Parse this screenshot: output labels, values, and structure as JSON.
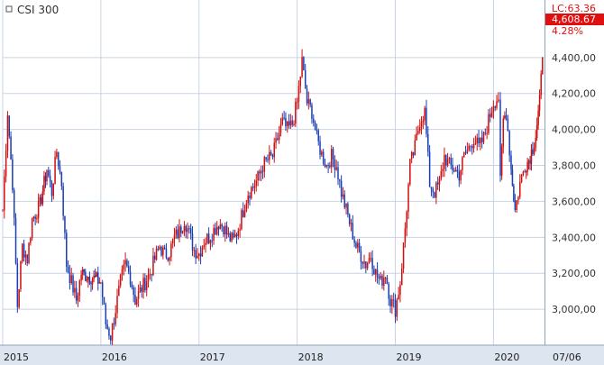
{
  "chart_data": {
    "type": "candlestick",
    "title": "CSI 300",
    "xlabel": "",
    "ylabel": "",
    "x_range": [
      "2015-01",
      "2020-07"
    ],
    "ylim": [
      2800,
      4720
    ],
    "grid": true,
    "y_ticks": [
      {
        "value": 3000,
        "label": "3,000,00"
      },
      {
        "value": 3200,
        "label": "3,200,00"
      },
      {
        "value": 3400,
        "label": "3,400,00"
      },
      {
        "value": 3600,
        "label": "3,600,00"
      },
      {
        "value": 3800,
        "label": "3,800,00"
      },
      {
        "value": 4000,
        "label": "4,000,00"
      },
      {
        "value": 4200,
        "label": "4,200,00"
      },
      {
        "value": 4400,
        "label": "4,400,00"
      }
    ],
    "x_ticks": [
      {
        "year": 2015,
        "label": "2015"
      },
      {
        "year": 2016,
        "label": "2016"
      },
      {
        "year": 2017,
        "label": "2017"
      },
      {
        "year": 2018,
        "label": "2018"
      },
      {
        "year": 2019,
        "label": "2019"
      },
      {
        "year": 2020,
        "label": "2020"
      }
    ],
    "date_label": "07/06",
    "last_price": {
      "label": "LC:63.36",
      "value": 4608.67,
      "value_label": "4,608.67",
      "change_label": "4.28%"
    },
    "colors": {
      "up": "#d01010",
      "down": "#1a3fb5",
      "grid": "#c8d4e3",
      "axis_bg": "#dde6f0",
      "price_bg": "#e01010"
    },
    "series": [
      {
        "x": 2015.0,
        "y": 3550
      },
      {
        "x": 2015.05,
        "y": 4100
      },
      {
        "x": 2015.1,
        "y": 3700
      },
      {
        "x": 2015.15,
        "y": 3020
      },
      {
        "x": 2015.2,
        "y": 3350
      },
      {
        "x": 2015.25,
        "y": 3280
      },
      {
        "x": 2015.3,
        "y": 3500
      },
      {
        "x": 2015.38,
        "y": 3580
      },
      {
        "x": 2015.45,
        "y": 3780
      },
      {
        "x": 2015.5,
        "y": 3650
      },
      {
        "x": 2015.55,
        "y": 3880
      },
      {
        "x": 2015.6,
        "y": 3700
      },
      {
        "x": 2015.65,
        "y": 3250
      },
      {
        "x": 2015.7,
        "y": 3150
      },
      {
        "x": 2015.75,
        "y": 3050
      },
      {
        "x": 2015.8,
        "y": 3200
      },
      {
        "x": 2015.9,
        "y": 3180
      },
      {
        "x": 2016.0,
        "y": 3150
      },
      {
        "x": 2016.05,
        "y": 2920
      },
      {
        "x": 2016.1,
        "y": 2850
      },
      {
        "x": 2016.15,
        "y": 3000
      },
      {
        "x": 2016.2,
        "y": 3150
      },
      {
        "x": 2016.25,
        "y": 3250
      },
      {
        "x": 2016.3,
        "y": 3180
      },
      {
        "x": 2016.35,
        "y": 3050
      },
      {
        "x": 2016.4,
        "y": 3100
      },
      {
        "x": 2016.45,
        "y": 3150
      },
      {
        "x": 2016.5,
        "y": 3200
      },
      {
        "x": 2016.55,
        "y": 3280
      },
      {
        "x": 2016.6,
        "y": 3350
      },
      {
        "x": 2016.65,
        "y": 3300
      },
      {
        "x": 2016.7,
        "y": 3320
      },
      {
        "x": 2016.75,
        "y": 3400
      },
      {
        "x": 2016.8,
        "y": 3430
      },
      {
        "x": 2016.85,
        "y": 3500
      },
      {
        "x": 2016.9,
        "y": 3420
      },
      {
        "x": 2016.95,
        "y": 3330
      },
      {
        "x": 2017.0,
        "y": 3310
      },
      {
        "x": 2017.05,
        "y": 3380
      },
      {
        "x": 2017.1,
        "y": 3400
      },
      {
        "x": 2017.15,
        "y": 3440
      },
      {
        "x": 2017.2,
        "y": 3480
      },
      {
        "x": 2017.25,
        "y": 3460
      },
      {
        "x": 2017.3,
        "y": 3400
      },
      {
        "x": 2017.35,
        "y": 3380
      },
      {
        "x": 2017.4,
        "y": 3450
      },
      {
        "x": 2017.45,
        "y": 3550
      },
      {
        "x": 2017.5,
        "y": 3650
      },
      {
        "x": 2017.55,
        "y": 3680
      },
      {
        "x": 2017.6,
        "y": 3730
      },
      {
        "x": 2017.65,
        "y": 3800
      },
      {
        "x": 2017.7,
        "y": 3830
      },
      {
        "x": 2017.75,
        "y": 3850
      },
      {
        "x": 2017.8,
        "y": 3950
      },
      {
        "x": 2017.85,
        "y": 4040
      },
      {
        "x": 2017.9,
        "y": 4000
      },
      {
        "x": 2017.95,
        "y": 4030
      },
      {
        "x": 2018.0,
        "y": 4150
      },
      {
        "x": 2018.05,
        "y": 4380
      },
      {
        "x": 2018.1,
        "y": 4150
      },
      {
        "x": 2018.15,
        "y": 4100
      },
      {
        "x": 2018.2,
        "y": 3950
      },
      {
        "x": 2018.25,
        "y": 3860
      },
      {
        "x": 2018.3,
        "y": 3800
      },
      {
        "x": 2018.35,
        "y": 3850
      },
      {
        "x": 2018.4,
        "y": 3800
      },
      {
        "x": 2018.45,
        "y": 3650
      },
      {
        "x": 2018.5,
        "y": 3550
      },
      {
        "x": 2018.55,
        "y": 3450
      },
      {
        "x": 2018.6,
        "y": 3350
      },
      {
        "x": 2018.65,
        "y": 3300
      },
      {
        "x": 2018.7,
        "y": 3250
      },
      {
        "x": 2018.75,
        "y": 3300
      },
      {
        "x": 2018.8,
        "y": 3200
      },
      {
        "x": 2018.85,
        "y": 3150
      },
      {
        "x": 2018.9,
        "y": 3200
      },
      {
        "x": 2018.95,
        "y": 3050
      },
      {
        "x": 2019.0,
        "y": 3000
      },
      {
        "x": 2019.05,
        "y": 3150
      },
      {
        "x": 2019.1,
        "y": 3450
      },
      {
        "x": 2019.15,
        "y": 3800
      },
      {
        "x": 2019.2,
        "y": 3900
      },
      {
        "x": 2019.25,
        "y": 4050
      },
      {
        "x": 2019.3,
        "y": 4100
      },
      {
        "x": 2019.35,
        "y": 3700
      },
      {
        "x": 2019.4,
        "y": 3650
      },
      {
        "x": 2019.45,
        "y": 3700
      },
      {
        "x": 2019.5,
        "y": 3850
      },
      {
        "x": 2019.55,
        "y": 3800
      },
      {
        "x": 2019.6,
        "y": 3780
      },
      {
        "x": 2019.65,
        "y": 3750
      },
      {
        "x": 2019.7,
        "y": 3850
      },
      {
        "x": 2019.75,
        "y": 3900
      },
      {
        "x": 2019.8,
        "y": 3950
      },
      {
        "x": 2019.85,
        "y": 3900
      },
      {
        "x": 2019.9,
        "y": 3950
      },
      {
        "x": 2019.95,
        "y": 4050
      },
      {
        "x": 2020.0,
        "y": 4150
      },
      {
        "x": 2020.05,
        "y": 4180
      },
      {
        "x": 2020.07,
        "y": 3700
      },
      {
        "x": 2020.1,
        "y": 4050
      },
      {
        "x": 2020.13,
        "y": 4100
      },
      {
        "x": 2020.18,
        "y": 3780
      },
      {
        "x": 2020.22,
        "y": 3550
      },
      {
        "x": 2020.27,
        "y": 3700
      },
      {
        "x": 2020.32,
        "y": 3800
      },
      {
        "x": 2020.36,
        "y": 3830
      },
      {
        "x": 2020.4,
        "y": 3900
      },
      {
        "x": 2020.43,
        "y": 3970
      },
      {
        "x": 2020.47,
        "y": 4150
      },
      {
        "x": 2020.5,
        "y": 4400
      }
    ]
  }
}
